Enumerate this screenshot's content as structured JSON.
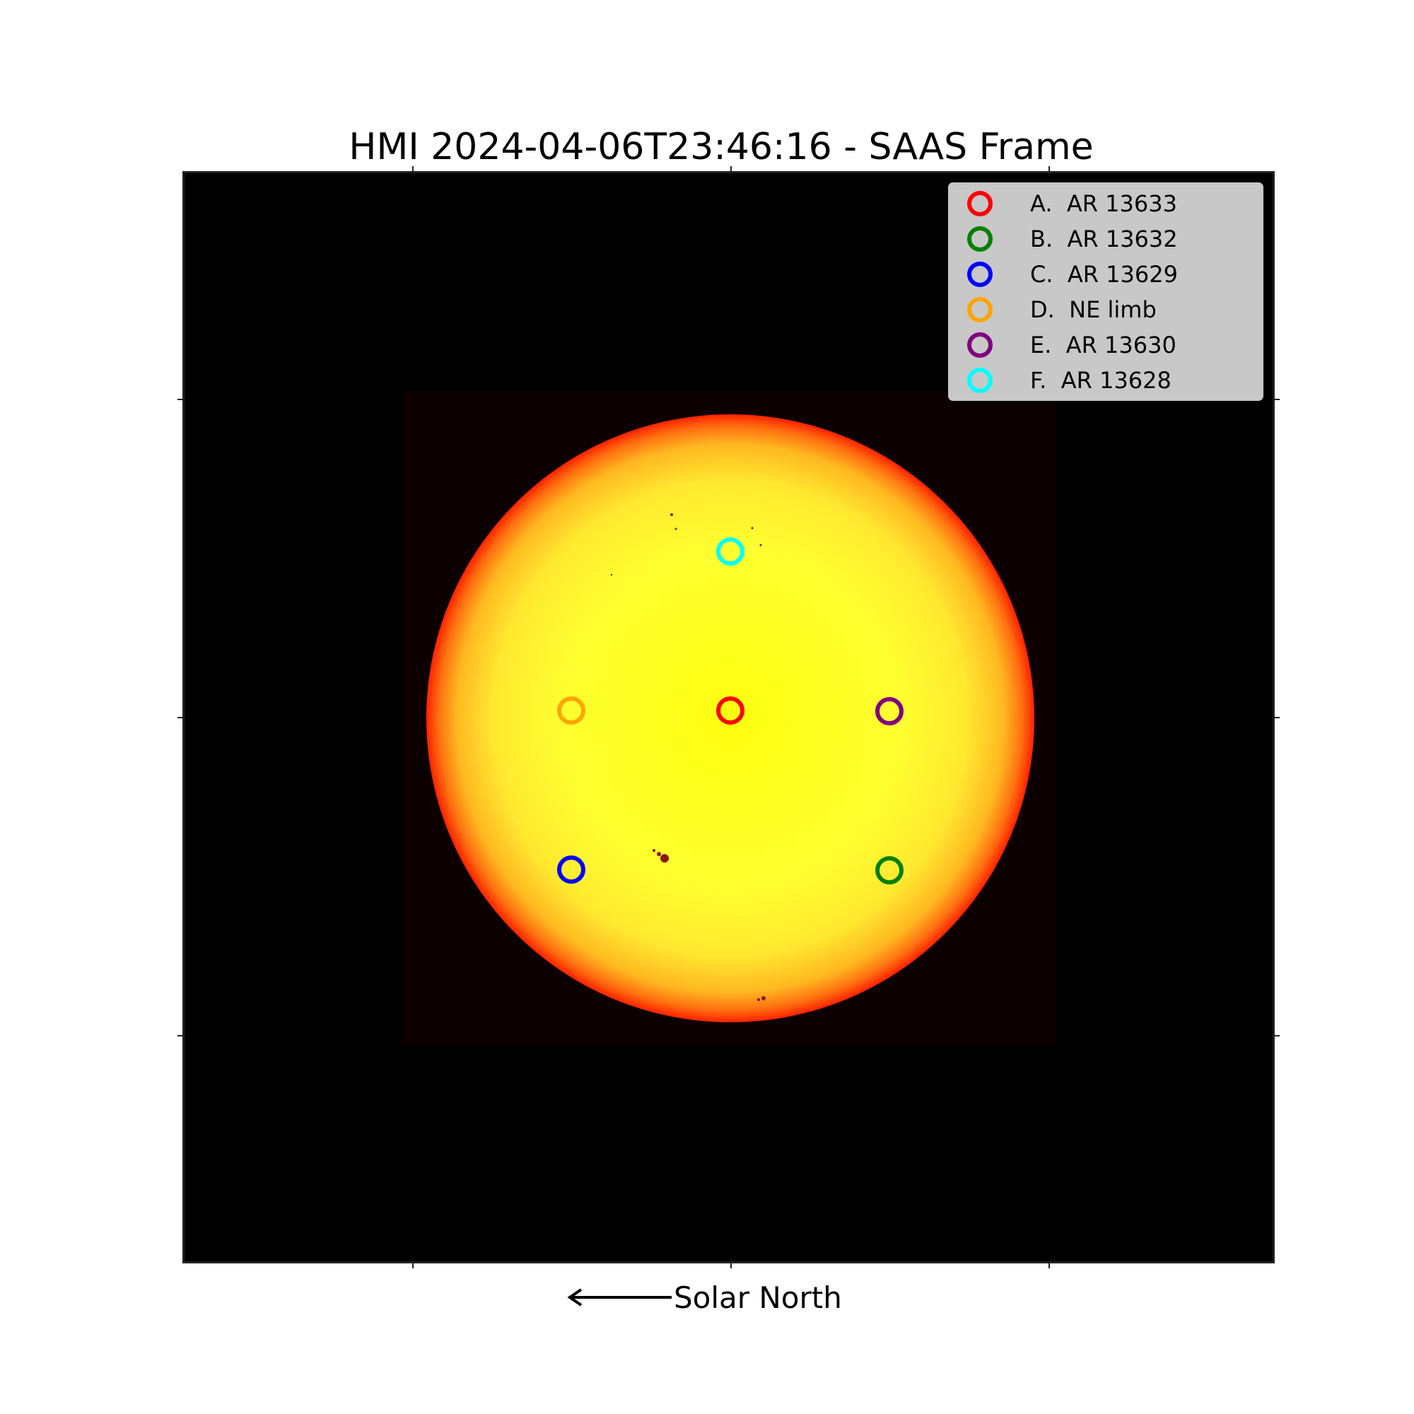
{
  "title": "HMI 2024-04-06T23:46:16 - SAAS Frame",
  "legend": [
    {
      "letter": "A.",
      "label": "AR 13633",
      "color": "#ff0000"
    },
    {
      "letter": "B.",
      "label": "AR 13632",
      "color": "#008000"
    },
    {
      "letter": "C.",
      "label": "AR 13629",
      "color": "#0000ff"
    },
    {
      "letter": "D.",
      "label": "NE limb",
      "color": "#ffa500"
    },
    {
      "letter": "E.",
      "label": "AR 13630",
      "color": "#800080"
    },
    {
      "letter": "F.",
      "label": "AR 13628",
      "color": "#00ffff"
    }
  ],
  "orientation_label": "Solar North",
  "colors": {
    "background": "#000000",
    "crop_region": "#0d0000",
    "disk_center": "#ffff00",
    "disk_limb": "#ff2200"
  }
}
